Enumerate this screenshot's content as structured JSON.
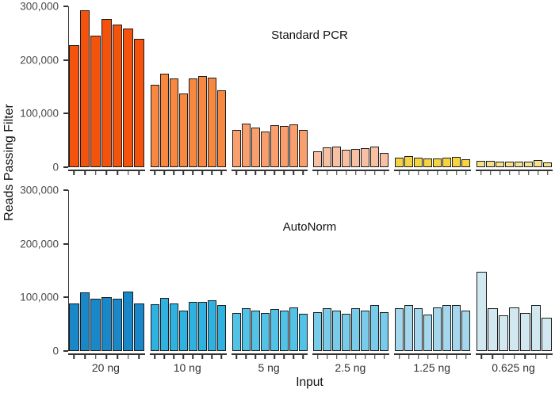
{
  "chart_data": {
    "type": "bar",
    "ylabel": "Reads Passing Filter",
    "xlabel": "Input",
    "ylim": [
      0,
      300000
    ],
    "ytick_values": [
      300000,
      200000,
      100000,
      0
    ],
    "ytick_labels": [
      "300,000",
      "200,000",
      "100,000",
      "0"
    ],
    "categories": [
      "20 ng",
      "10 ng",
      "5 ng",
      "2.5 ng",
      "1.25 ng",
      "0.625 ng"
    ],
    "grid": false,
    "legend": "none",
    "axis_color": "#333333",
    "bar_border_color": "#1c1c1c",
    "panels": [
      {
        "label": "Standard PCR",
        "groups": [
          {
            "category": "20 ng",
            "color": "#f4530e",
            "values": [
              227000,
              293000,
              246000,
              277000,
              266000,
              258000,
              240000
            ]
          },
          {
            "category": "10 ng",
            "color": "#f8873f",
            "values": [
              154000,
              174000,
              165000,
              137000,
              166000,
              170000,
              167000,
              143000
            ]
          },
          {
            "category": "5 ng",
            "color": "#f99f6e",
            "values": [
              70000,
              82000,
              74000,
              67000,
              78000,
              77000,
              80000,
              69000
            ]
          },
          {
            "category": "2.5 ng",
            "color": "#f8c0a2",
            "values": [
              30000,
              37000,
              39000,
              33000,
              34000,
              36000,
              39000,
              27000
            ]
          },
          {
            "category": "1.25 ng",
            "color": "#f5d440",
            "values": [
              18000,
              21000,
              18000,
              16000,
              16000,
              18000,
              19000,
              15000
            ]
          },
          {
            "category": "0.625 ng",
            "color": "#f6e18a",
            "values": [
              12000,
              12000,
              10000,
              11000,
              10000,
              11000,
              13000,
              9000
            ]
          }
        ]
      },
      {
        "label": "AutoNorm",
        "groups": [
          {
            "category": "20 ng",
            "color": "#1a87c8",
            "values": [
              88000,
              110000,
              98000,
              101000,
              98000,
              111000,
              89000
            ]
          },
          {
            "category": "10 ng",
            "color": "#2eb2e2",
            "values": [
              87000,
              99000,
              89000,
              76000,
              92000,
              92000,
              95000,
              86000
            ]
          },
          {
            "category": "5 ng",
            "color": "#53c2e7",
            "values": [
              71000,
              80000,
              76000,
              71000,
              79000,
              76000,
              82000,
              70000
            ]
          },
          {
            "category": "2.5 ng",
            "color": "#78cce9",
            "values": [
              72000,
              80000,
              76000,
              70000,
              80000,
              76000,
              85000,
              72000
            ]
          },
          {
            "category": "1.25 ng",
            "color": "#a4d7ec",
            "values": [
              80000,
              86000,
              80000,
              68000,
              82000,
              86000,
              85000,
              75000
            ]
          },
          {
            "category": "0.625 ng",
            "color": "#d1e8f1",
            "values": [
              148000,
              80000,
              67000,
              81000,
              71000,
              86000,
              62000
            ]
          }
        ]
      }
    ]
  }
}
